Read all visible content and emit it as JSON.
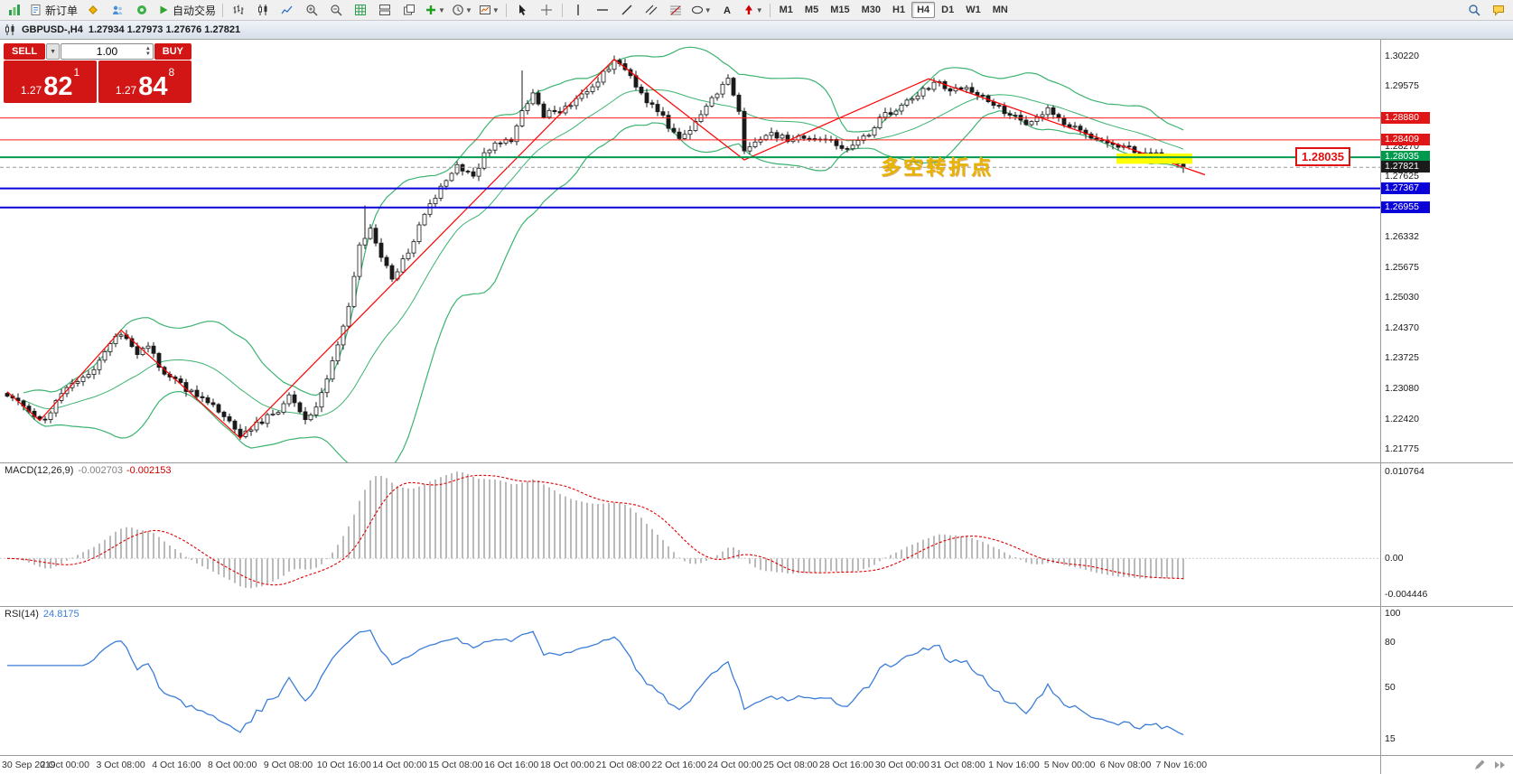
{
  "theme": {
    "toolbar_bg": "#f0f0f0",
    "panel_bg": "#ffffff",
    "border": "#9a9a9a",
    "bull": "#ffffff",
    "bear": "#1a1a1a",
    "wick": "#1a1a1a",
    "bollinger": "#3cb371",
    "zigzag": "#ff0000",
    "level_red": "#ff1a1a",
    "level_green": "#009a4e",
    "level_blue": "#0a00d8",
    "macd_hist": "#a9a9a9",
    "macd_signal": "#e00000",
    "rsi_line": "#3b7dd8",
    "highlight": "#ffff00",
    "annotation_gold": "#e8b400",
    "trade_red": "#d21616"
  },
  "toolbar": {
    "items": [
      {
        "name": "app-logo-icon",
        "glyph": "logo"
      },
      {
        "name": "new-order-button",
        "glyph": "neworder",
        "label": "新订单"
      },
      {
        "name": "new-chart-icon",
        "glyph": "gold"
      },
      {
        "name": "profiles-icon",
        "glyph": "profiles"
      },
      {
        "name": "market-watch-icon",
        "glyph": "sound"
      },
      {
        "name": "auto-trading-button",
        "glyph": "play",
        "label": "自动交易"
      },
      {
        "type": "sep"
      },
      {
        "name": "bar-chart-icon",
        "glyph": "bars"
      },
      {
        "name": "candlestick-chart-icon",
        "glyph": "candles"
      },
      {
        "name": "line-chart-icon",
        "glyph": "linechart"
      },
      {
        "name": "zoom-in-icon",
        "glyph": "zoomin"
      },
      {
        "name": "zoom-out-icon",
        "glyph": "zoomout"
      },
      {
        "name": "grid-icon",
        "glyph": "grid"
      },
      {
        "name": "tile-windows-icon",
        "glyph": "tile"
      },
      {
        "name": "cascade-windows-icon",
        "glyph": "cascade"
      },
      {
        "name": "indicators-button",
        "glyph": "plus",
        "caret": true
      },
      {
        "name": "periods-button",
        "glyph": "clock",
        "caret": true
      },
      {
        "name": "templates-button",
        "glyph": "template",
        "caret": true
      },
      {
        "type": "sep"
      },
      {
        "name": "cursor-icon",
        "glyph": "cursor"
      },
      {
        "name": "crosshair-icon",
        "glyph": "cross"
      },
      {
        "type": "sep"
      },
      {
        "name": "vertical-line-icon",
        "glyph": "vline"
      },
      {
        "name": "horizontal-line-icon",
        "glyph": "hline"
      },
      {
        "name": "trendline-icon",
        "glyph": "tline"
      },
      {
        "name": "channel-icon",
        "glyph": "channel"
      },
      {
        "name": "fibonacci-icon",
        "glyph": "fibo"
      },
      {
        "name": "shapes-button",
        "glyph": "ellipse",
        "caret": true
      },
      {
        "name": "text-icon",
        "glyph": "textA"
      },
      {
        "name": "arrows-button",
        "glyph": "arrowmark",
        "caret": true
      },
      {
        "type": "sep"
      },
      {
        "type": "tf",
        "name": "timeframe-m1-button",
        "label": "M1"
      },
      {
        "type": "tf",
        "name": "timeframe-m5-button",
        "label": "M5"
      },
      {
        "type": "tf",
        "name": "timeframe-m15-button",
        "label": "M15"
      },
      {
        "type": "tf",
        "name": "timeframe-m30-button",
        "label": "M30"
      },
      {
        "type": "tf",
        "name": "timeframe-h1-button",
        "label": "H1"
      },
      {
        "type": "tf",
        "name": "timeframe-h4-button",
        "label": "H4",
        "active": true
      },
      {
        "type": "tf",
        "name": "timeframe-d1-button",
        "label": "D1"
      },
      {
        "type": "tf",
        "name": "timeframe-w1-button",
        "label": "W1"
      },
      {
        "type": "tf",
        "name": "timeframe-mn-button",
        "label": "MN"
      },
      {
        "type": "spacer"
      },
      {
        "name": "search-icon",
        "glyph": "search"
      },
      {
        "name": "community-icon",
        "glyph": "chat"
      }
    ]
  },
  "chart_header": {
    "symbol": "GBPUSD-,H4",
    "ohlc": "1.27934 1.27973 1.27676 1.27821"
  },
  "trade_panel": {
    "sell_label": "SELL",
    "buy_label": "BUY",
    "volume": "1.00",
    "sell_small": "1.27",
    "sell_big": "82",
    "sell_sup": "1",
    "buy_small": "1.27",
    "buy_big": "84",
    "buy_sup": "8"
  },
  "annotation": {
    "text": "多空转折点"
  },
  "callout": {
    "text": "1.28035"
  },
  "macd": {
    "name": "MACD(12,26,9)",
    "main_value": "-0.002703",
    "signal_value": "-0.002153",
    "scale_labels": [
      {
        "text": "0.010764",
        "value": 0.010764
      },
      {
        "text": "0.00",
        "value": 0
      },
      {
        "text": "-0.004446",
        "value": -0.004446
      }
    ]
  },
  "rsi": {
    "name": "RSI(14)",
    "value": "24.8175",
    "scale_labels": [
      {
        "text": "100",
        "value": 100
      },
      {
        "text": "80",
        "value": 80
      },
      {
        "text": "50",
        "value": 50
      },
      {
        "text": "15",
        "value": 15
      }
    ]
  },
  "price_scale": {
    "ticks": [
      {
        "text": "1.30220",
        "value": 1.3022
      },
      {
        "text": "1.29575",
        "value": 1.29575
      },
      {
        "text": "1.28270",
        "value": 1.2827
      },
      {
        "text": "1.27625",
        "value": 1.27625
      },
      {
        "text": "1.26332",
        "value": 1.26332
      },
      {
        "text": "1.25675",
        "value": 1.25675
      },
      {
        "text": "1.25030",
        "value": 1.2503
      },
      {
        "text": "1.24370",
        "value": 1.2437
      },
      {
        "text": "1.23725",
        "value": 1.23725
      },
      {
        "text": "1.23080",
        "value": 1.2308
      },
      {
        "text": "1.22420",
        "value": 1.2242
      },
      {
        "text": "1.21775",
        "value": 1.21775
      }
    ],
    "level_tags": [
      {
        "text": "1.28880",
        "value": 1.2888,
        "bg": "#e01616",
        "line_color": "#ff1a1a",
        "line_width": 1
      },
      {
        "text": "1.28409",
        "value": 1.28409,
        "bg": "#e01616",
        "line_color": "#ff1a1a",
        "line_width": 1
      },
      {
        "text": "1.28035",
        "value": 1.28035,
        "bg": "#009a4e",
        "line_color": "#009a4e",
        "line_width": 2
      },
      {
        "text": "1.27367",
        "value": 1.27367,
        "bg": "#0a00d8",
        "line_color": "#0a00d8",
        "line_width": 2
      },
      {
        "text": "1.26955",
        "value": 1.26955,
        "bg": "#0a00d8",
        "line_color": "#0a00d8",
        "line_width": 2
      }
    ],
    "current_tag": {
      "text": "1.27821",
      "value": 1.27821,
      "bg": "#1b1b1b"
    }
  },
  "time_axis": {
    "labels": [
      "30 Sep 2019",
      "2 Oct 00:00",
      "3 Oct 08:00",
      "4 Oct 16:00",
      "8 Oct 00:00",
      "9 Oct 08:00",
      "10 Oct 16:00",
      "14 Oct 00:00",
      "15 Oct 08:00",
      "16 Oct 16:00",
      "18 Oct 00:00",
      "21 Oct 08:00",
      "22 Oct 16:00",
      "24 Oct 00:00",
      "25 Oct 08:00",
      "28 Oct 16:00",
      "30 Oct 00:00",
      "31 Oct 08:00",
      "1 Nov 16:00",
      "5 Nov 00:00",
      "6 Nov 08:00",
      "7 Nov 16:00"
    ]
  },
  "chart_data": {
    "type": "candlestick",
    "symbol": "GBPUSD",
    "period": "H4",
    "price_range": [
      1.2148,
      1.3056
    ],
    "candle_count": 218,
    "close_path": [
      [
        0,
        1.2295
      ],
      [
        4,
        1.2258
      ],
      [
        7,
        1.2242
      ],
      [
        10,
        1.2298
      ],
      [
        13,
        1.2318
      ],
      [
        16,
        1.2352
      ],
      [
        21,
        1.2428
      ],
      [
        24,
        1.2382
      ],
      [
        26,
        1.2396
      ],
      [
        29,
        1.234
      ],
      [
        33,
        1.2305
      ],
      [
        37,
        1.2282
      ],
      [
        43,
        1.2208
      ],
      [
        47,
        1.2238
      ],
      [
        50,
        1.2262
      ],
      [
        52,
        1.2288
      ],
      [
        55,
        1.2242
      ],
      [
        57,
        1.2262
      ],
      [
        59,
        1.233
      ],
      [
        61,
        1.2395
      ],
      [
        63,
        1.248
      ],
      [
        65,
        1.261
      ],
      [
        67,
        1.2655
      ],
      [
        69,
        1.259
      ],
      [
        71,
        1.2545
      ],
      [
        74,
        1.26
      ],
      [
        77,
        1.268
      ],
      [
        80,
        1.274
      ],
      [
        83,
        1.279
      ],
      [
        86,
        1.276
      ],
      [
        88,
        1.281
      ],
      [
        91,
        1.284
      ],
      [
        93,
        1.2835
      ],
      [
        95,
        1.29
      ],
      [
        97,
        1.294
      ],
      [
        99,
        1.2895
      ],
      [
        102,
        1.2905
      ],
      [
        105,
        1.2925
      ],
      [
        108,
        1.295
      ],
      [
        110,
        1.2985
      ],
      [
        112,
        1.3008
      ],
      [
        114,
        1.299
      ],
      [
        116,
        1.296
      ],
      [
        118,
        1.2925
      ],
      [
        120,
        1.2905
      ],
      [
        122,
        1.287
      ],
      [
        124,
        1.284
      ],
      [
        127,
        1.288
      ],
      [
        129,
        1.291
      ],
      [
        131,
        1.2945
      ],
      [
        133,
        1.2975
      ],
      [
        135,
        1.29
      ],
      [
        136,
        1.2815
      ],
      [
        138,
        1.284
      ],
      [
        141,
        1.2855
      ],
      [
        144,
        1.284
      ],
      [
        147,
        1.285
      ],
      [
        149,
        1.2835
      ],
      [
        151,
        1.2845
      ],
      [
        153,
        1.283
      ],
      [
        155,
        1.282
      ],
      [
        157,
        1.2845
      ],
      [
        159,
        1.285
      ],
      [
        161,
        1.289
      ],
      [
        163,
        1.29
      ],
      [
        165,
        1.291
      ],
      [
        167,
        1.293
      ],
      [
        170,
        1.2955
      ],
      [
        172,
        1.2968
      ],
      [
        174,
        1.2945
      ],
      [
        177,
        1.2958
      ],
      [
        180,
        1.293
      ],
      [
        183,
        1.291
      ],
      [
        186,
        1.289
      ],
      [
        189,
        1.2875
      ],
      [
        192,
        1.2905
      ],
      [
        194,
        1.2885
      ],
      [
        197,
        1.2865
      ],
      [
        200,
        1.285
      ],
      [
        203,
        1.2838
      ],
      [
        206,
        1.2825
      ],
      [
        209,
        1.2815
      ],
      [
        212,
        1.2808
      ],
      [
        214,
        1.2805
      ],
      [
        217,
        1.27821
      ]
    ],
    "zigzag": [
      [
        0,
        1.23
      ],
      [
        6,
        1.2238
      ],
      [
        21,
        1.2432
      ],
      [
        43,
        1.22
      ],
      [
        112,
        1.3014
      ],
      [
        136,
        1.2798
      ],
      [
        170,
        1.2972
      ],
      [
        221,
        1.2766
      ]
    ],
    "spikes": [
      {
        "i": 95,
        "high": 1.299
      },
      {
        "i": 112,
        "high": 1.3022
      },
      {
        "i": 66,
        "high": 1.27
      },
      {
        "i": 217,
        "low": 1.277
      }
    ],
    "levels": [
      1.2888,
      1.28409,
      1.28035,
      1.27367,
      1.26955
    ],
    "current_price": 1.27821,
    "highlight": {
      "i0": 205,
      "i1": 219,
      "top": 1.28115,
      "bottom": 1.27895
    },
    "bollinger": {
      "period": 20,
      "deviation": 2
    },
    "macd_params": [
      12,
      26,
      9
    ],
    "rsi_period": 14
  }
}
